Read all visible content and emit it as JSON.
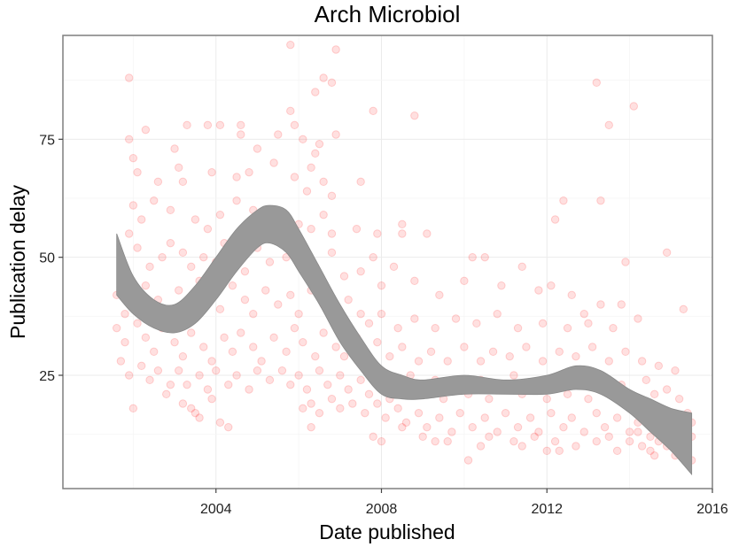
{
  "chart_data": {
    "type": "scatter",
    "title": "Arch Microbiol",
    "xlabel": "Date published",
    "ylabel": "Publication delay",
    "x_ticks": [
      2004,
      2008,
      2012,
      2016
    ],
    "y_ticks": [
      25,
      50,
      75
    ],
    "xlim": [
      2000.3,
      2016.0
    ],
    "ylim": [
      1,
      97
    ],
    "grid": true,
    "point_color": "#ff0000",
    "point_alpha": 0.12,
    "band_color": "#999999",
    "points": [
      [
        2001.9,
        88
      ],
      [
        2005.8,
        95
      ],
      [
        2006.9,
        94
      ],
      [
        2006.6,
        88
      ],
      [
        2006.4,
        85
      ],
      [
        2006.8,
        87
      ],
      [
        2005.8,
        81
      ],
      [
        2007.8,
        81
      ],
      [
        2008.8,
        80
      ],
      [
        2013.2,
        87
      ],
      [
        2014.1,
        82
      ],
      [
        2013.5,
        78
      ],
      [
        2001.9,
        75
      ],
      [
        2002.3,
        77
      ],
      [
        2003.3,
        78
      ],
      [
        2003.8,
        78
      ],
      [
        2004.1,
        78
      ],
      [
        2004.6,
        78
      ],
      [
        2005.9,
        78
      ],
      [
        2005.5,
        76
      ],
      [
        2006.1,
        75
      ],
      [
        2006.9,
        76
      ],
      [
        2006.4,
        72
      ],
      [
        2005.0,
        73
      ],
      [
        2003.0,
        73
      ],
      [
        2004.6,
        76
      ],
      [
        2006.5,
        74
      ],
      [
        2006.3,
        69
      ],
      [
        2006.6,
        66
      ],
      [
        2007.5,
        66
      ],
      [
        2006.8,
        63
      ],
      [
        2002.0,
        71
      ],
      [
        2002.1,
        68
      ],
      [
        2002.6,
        66
      ],
      [
        2003.2,
        66
      ],
      [
        2003.1,
        69
      ],
      [
        2003.9,
        68
      ],
      [
        2004.5,
        67
      ],
      [
        2004.8,
        68
      ],
      [
        2005.4,
        70
      ],
      [
        2005.9,
        67
      ],
      [
        2006.2,
        64
      ],
      [
        2002.5,
        62
      ],
      [
        2002.0,
        61
      ],
      [
        2002.2,
        58
      ],
      [
        2002.9,
        60
      ],
      [
        2003.5,
        58
      ],
      [
        2003.8,
        56
      ],
      [
        2004.1,
        59
      ],
      [
        2004.5,
        62
      ],
      [
        2004.9,
        60
      ],
      [
        2005.2,
        57
      ],
      [
        2004.8,
        55
      ],
      [
        2005.6,
        54
      ],
      [
        2006.0,
        57
      ],
      [
        2006.3,
        56
      ],
      [
        2006.8,
        55
      ],
      [
        2007.4,
        56
      ],
      [
        2007.9,
        55
      ],
      [
        2008.5,
        57
      ],
      [
        2008.5,
        55
      ],
      [
        2009.1,
        55
      ],
      [
        2012.2,
        58
      ],
      [
        2012.4,
        62
      ],
      [
        2013.3,
        62
      ],
      [
        2006.6,
        59
      ],
      [
        2001.7,
        50
      ],
      [
        2001.9,
        55
      ],
      [
        2002.1,
        52
      ],
      [
        2002.4,
        48
      ],
      [
        2002.7,
        50
      ],
      [
        2002.9,
        53
      ],
      [
        2003.2,
        51
      ],
      [
        2003.4,
        48
      ],
      [
        2003.7,
        50
      ],
      [
        2004.0,
        49
      ],
      [
        2004.2,
        53
      ],
      [
        2004.4,
        51
      ],
      [
        2004.7,
        47
      ],
      [
        2005.0,
        52
      ],
      [
        2005.3,
        49
      ],
      [
        2005.7,
        50
      ],
      [
        2006.1,
        52
      ],
      [
        2006.4,
        48
      ],
      [
        2006.8,
        51
      ],
      [
        2007.1,
        46
      ],
      [
        2007.5,
        47
      ],
      [
        2007.8,
        50
      ],
      [
        2008.0,
        44
      ],
      [
        2008.3,
        48
      ],
      [
        2008.8,
        45
      ],
      [
        2009.4,
        42
      ],
      [
        2010.0,
        45
      ],
      [
        2010.2,
        50
      ],
      [
        2010.5,
        50
      ],
      [
        2010.9,
        44
      ],
      [
        2011.4,
        48
      ],
      [
        2011.8,
        43
      ],
      [
        2012.1,
        44
      ],
      [
        2012.6,
        42
      ],
      [
        2013.3,
        40
      ],
      [
        2013.9,
        49
      ],
      [
        2013.8,
        40
      ],
      [
        2014.9,
        51
      ],
      [
        2015.3,
        39
      ],
      [
        2012.9,
        38
      ],
      [
        2014.2,
        37
      ],
      [
        2001.6,
        42
      ],
      [
        2001.8,
        38
      ],
      [
        2002.0,
        40
      ],
      [
        2002.3,
        44
      ],
      [
        2002.6,
        41
      ],
      [
        2002.8,
        38
      ],
      [
        2003.1,
        43
      ],
      [
        2003.3,
        40
      ],
      [
        2003.6,
        45
      ],
      [
        2003.9,
        42
      ],
      [
        2004.1,
        39
      ],
      [
        2004.4,
        44
      ],
      [
        2004.7,
        41
      ],
      [
        2004.9,
        38
      ],
      [
        2005.2,
        43
      ],
      [
        2005.5,
        40
      ],
      [
        2005.8,
        42
      ],
      [
        2006.0,
        38
      ],
      [
        2006.3,
        43
      ],
      [
        2006.6,
        40
      ],
      [
        2006.9,
        37
      ],
      [
        2007.2,
        41
      ],
      [
        2007.5,
        38
      ],
      [
        2007.7,
        36
      ],
      [
        2008.0,
        38
      ],
      [
        2008.4,
        35
      ],
      [
        2008.8,
        37
      ],
      [
        2009.3,
        35
      ],
      [
        2009.8,
        37
      ],
      [
        2010.3,
        36
      ],
      [
        2010.8,
        38
      ],
      [
        2011.3,
        35
      ],
      [
        2011.9,
        36
      ],
      [
        2012.5,
        35
      ],
      [
        2013.0,
        36
      ],
      [
        2013.6,
        35
      ],
      [
        2001.6,
        35
      ],
      [
        2001.8,
        32
      ],
      [
        2002.1,
        36
      ],
      [
        2002.3,
        33
      ],
      [
        2002.5,
        30
      ],
      [
        2002.7,
        35
      ],
      [
        2003.0,
        32
      ],
      [
        2003.2,
        29
      ],
      [
        2003.4,
        34
      ],
      [
        2003.7,
        31
      ],
      [
        2003.9,
        28
      ],
      [
        2004.2,
        33
      ],
      [
        2004.4,
        30
      ],
      [
        2004.6,
        34
      ],
      [
        2004.9,
        31
      ],
      [
        2005.1,
        28
      ],
      [
        2005.4,
        33
      ],
      [
        2005.7,
        30
      ],
      [
        2005.9,
        35
      ],
      [
        2006.1,
        32
      ],
      [
        2006.4,
        29
      ],
      [
        2006.6,
        34
      ],
      [
        2006.9,
        31
      ],
      [
        2007.1,
        29
      ],
      [
        2007.4,
        33
      ],
      [
        2007.6,
        30
      ],
      [
        2007.9,
        32
      ],
      [
        2008.2,
        29
      ],
      [
        2008.5,
        31
      ],
      [
        2008.9,
        28
      ],
      [
        2009.2,
        30
      ],
      [
        2009.6,
        28
      ],
      [
        2010.0,
        31
      ],
      [
        2010.4,
        28
      ],
      [
        2010.7,
        30
      ],
      [
        2011.1,
        29
      ],
      [
        2011.5,
        31
      ],
      [
        2011.9,
        28
      ],
      [
        2012.3,
        30
      ],
      [
        2012.7,
        29
      ],
      [
        2013.1,
        31
      ],
      [
        2013.5,
        28
      ],
      [
        2013.9,
        30
      ],
      [
        2014.3,
        28
      ],
      [
        2014.7,
        27
      ],
      [
        2015.1,
        26
      ],
      [
        2001.7,
        28
      ],
      [
        2001.9,
        25
      ],
      [
        2002.2,
        27
      ],
      [
        2002.4,
        24
      ],
      [
        2002.6,
        26
      ],
      [
        2002.9,
        23
      ],
      [
        2003.1,
        26
      ],
      [
        2003.3,
        23
      ],
      [
        2003.6,
        25
      ],
      [
        2003.8,
        22
      ],
      [
        2004.0,
        26
      ],
      [
        2004.3,
        23
      ],
      [
        2004.5,
        25
      ],
      [
        2004.8,
        22
      ],
      [
        2005.0,
        26
      ],
      [
        2005.3,
        24
      ],
      [
        2005.6,
        26
      ],
      [
        2005.8,
        23
      ],
      [
        2006.0,
        25
      ],
      [
        2006.2,
        22
      ],
      [
        2006.5,
        26
      ],
      [
        2006.7,
        23
      ],
      [
        2007.0,
        25
      ],
      [
        2007.2,
        22
      ],
      [
        2007.5,
        24
      ],
      [
        2007.7,
        21
      ],
      [
        2008.0,
        23
      ],
      [
        2008.2,
        20
      ],
      [
        2008.5,
        22
      ],
      [
        2008.7,
        25
      ],
      [
        2009.0,
        21
      ],
      [
        2009.3,
        24
      ],
      [
        2009.5,
        20
      ],
      [
        2009.8,
        23
      ],
      [
        2010.1,
        21
      ],
      [
        2010.4,
        24
      ],
      [
        2010.6,
        20
      ],
      [
        2010.9,
        22
      ],
      [
        2011.2,
        25
      ],
      [
        2011.4,
        21
      ],
      [
        2011.7,
        23
      ],
      [
        2012.0,
        20
      ],
      [
        2012.2,
        24
      ],
      [
        2012.5,
        21
      ],
      [
        2012.8,
        23
      ],
      [
        2013.0,
        20
      ],
      [
        2013.3,
        24
      ],
      [
        2013.6,
        21
      ],
      [
        2013.8,
        23
      ],
      [
        2014.1,
        20
      ],
      [
        2014.4,
        24
      ],
      [
        2014.6,
        21
      ],
      [
        2014.9,
        22
      ],
      [
        2015.2,
        20
      ],
      [
        2002.8,
        21
      ],
      [
        2003.2,
        19
      ],
      [
        2003.5,
        17
      ],
      [
        2003.9,
        20
      ],
      [
        2004.1,
        15
      ],
      [
        2004.3,
        14
      ],
      [
        2003.6,
        16
      ],
      [
        2003.4,
        18
      ],
      [
        2002.0,
        18
      ],
      [
        2006.1,
        18
      ],
      [
        2006.3,
        19
      ],
      [
        2006.5,
        17
      ],
      [
        2006.8,
        20
      ],
      [
        2007.0,
        18
      ],
      [
        2006.3,
        14
      ],
      [
        2007.3,
        19
      ],
      [
        2007.6,
        17
      ],
      [
        2007.9,
        19
      ],
      [
        2008.1,
        16
      ],
      [
        2008.4,
        18
      ],
      [
        2008.6,
        15
      ],
      [
        2008.9,
        17
      ],
      [
        2009.1,
        14
      ],
      [
        2009.4,
        16
      ],
      [
        2009.7,
        13
      ],
      [
        2009.9,
        17
      ],
      [
        2010.2,
        14
      ],
      [
        2010.5,
        16
      ],
      [
        2010.8,
        13
      ],
      [
        2011.0,
        17
      ],
      [
        2011.3,
        14
      ],
      [
        2011.6,
        16
      ],
      [
        2011.8,
        13
      ],
      [
        2012.1,
        17
      ],
      [
        2012.4,
        14
      ],
      [
        2012.6,
        16
      ],
      [
        2012.9,
        13
      ],
      [
        2013.2,
        17
      ],
      [
        2013.4,
        14
      ],
      [
        2013.7,
        16
      ],
      [
        2014.0,
        13
      ],
      [
        2014.2,
        15
      ],
      [
        2014.5,
        12
      ],
      [
        2014.8,
        14
      ],
      [
        2015.0,
        11
      ],
      [
        2015.3,
        13
      ],
      [
        2015.5,
        15
      ],
      [
        2008.5,
        14
      ],
      [
        2009.0,
        12
      ],
      [
        2009.6,
        11
      ],
      [
        2010.1,
        7
      ],
      [
        2010.6,
        12
      ],
      [
        2011.2,
        11
      ],
      [
        2011.7,
        12
      ],
      [
        2012.2,
        11
      ],
      [
        2012.7,
        10
      ],
      [
        2012.0,
        9
      ],
      [
        2012.3,
        9
      ],
      [
        2014.0,
        11
      ],
      [
        2014.3,
        10
      ],
      [
        2014.5,
        9
      ],
      [
        2014.7,
        11
      ],
      [
        2014.9,
        10
      ],
      [
        2015.1,
        8
      ],
      [
        2015.2,
        9
      ],
      [
        2015.4,
        10
      ],
      [
        2015.5,
        7
      ],
      [
        2015.0,
        12
      ],
      [
        2014.6,
        8
      ],
      [
        2013.7,
        9
      ],
      [
        2013.2,
        11
      ],
      [
        2011.4,
        10
      ],
      [
        2009.3,
        11
      ],
      [
        2010.4,
        10
      ],
      [
        2008.0,
        11
      ],
      [
        2007.8,
        12
      ],
      [
        2015.4,
        17
      ],
      [
        2014.8,
        17
      ],
      [
        2015.0,
        15
      ],
      [
        2014.2,
        13
      ],
      [
        2013.5,
        12
      ],
      [
        2015.5,
        12
      ],
      [
        2015.3,
        11
      ]
    ],
    "smooth_band": [
      {
        "x": 2001.6,
        "lo": 42,
        "hi": 55
      },
      {
        "x": 2002.0,
        "lo": 38,
        "hi": 46
      },
      {
        "x": 2002.5,
        "lo": 35,
        "hi": 41
      },
      {
        "x": 2003.0,
        "lo": 34,
        "hi": 40
      },
      {
        "x": 2003.5,
        "lo": 36,
        "hi": 44
      },
      {
        "x": 2004.0,
        "lo": 41,
        "hi": 50
      },
      {
        "x": 2004.5,
        "lo": 47,
        "hi": 56
      },
      {
        "x": 2005.0,
        "lo": 52,
        "hi": 60
      },
      {
        "x": 2005.3,
        "lo": 53,
        "hi": 61
      },
      {
        "x": 2005.7,
        "lo": 51,
        "hi": 60
      },
      {
        "x": 2006.0,
        "lo": 47,
        "hi": 56
      },
      {
        "x": 2006.5,
        "lo": 40,
        "hi": 48
      },
      {
        "x": 2007.0,
        "lo": 32,
        "hi": 40
      },
      {
        "x": 2007.5,
        "lo": 26,
        "hi": 33
      },
      {
        "x": 2008.0,
        "lo": 21,
        "hi": 27
      },
      {
        "x": 2008.5,
        "lo": 20,
        "hi": 25
      },
      {
        "x": 2009.0,
        "lo": 20,
        "hi": 24
      },
      {
        "x": 2010.0,
        "lo": 21,
        "hi": 25
      },
      {
        "x": 2011.0,
        "lo": 21,
        "hi": 24
      },
      {
        "x": 2012.0,
        "lo": 21,
        "hi": 25
      },
      {
        "x": 2012.7,
        "lo": 22,
        "hi": 27
      },
      {
        "x": 2013.3,
        "lo": 21,
        "hi": 26
      },
      {
        "x": 2014.0,
        "lo": 17,
        "hi": 22
      },
      {
        "x": 2014.5,
        "lo": 13,
        "hi": 20
      },
      {
        "x": 2015.0,
        "lo": 9,
        "hi": 18
      },
      {
        "x": 2015.5,
        "lo": 4,
        "hi": 17
      }
    ]
  }
}
